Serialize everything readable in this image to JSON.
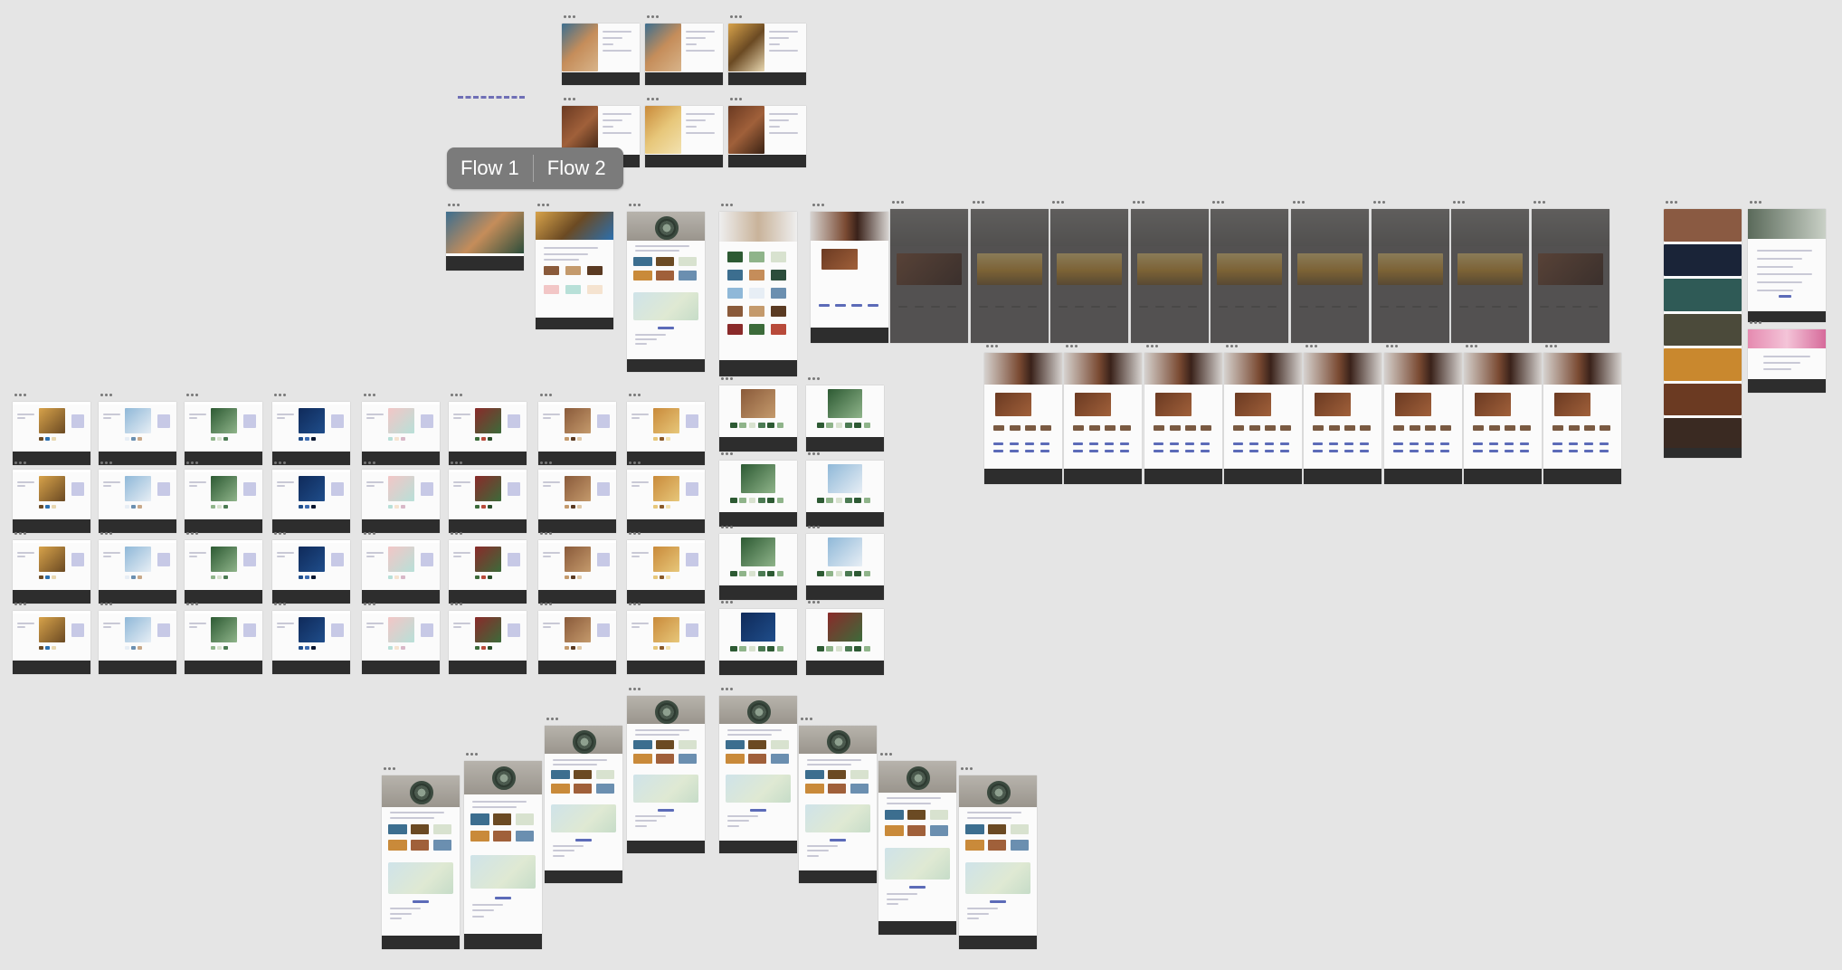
{
  "canvas": {
    "background": "#e5e5e5",
    "frame_handle_icon": "three-dots-icon"
  },
  "flow_toggle": {
    "items": [
      "Flow 1",
      "Flow 2"
    ]
  },
  "connector": {
    "style": "dashed",
    "color": "#6f6fb6"
  },
  "colors": {
    "footer": "#2d2d2d",
    "accent": "#5c6bb8",
    "grey_frame": "#6f6c6a"
  }
}
